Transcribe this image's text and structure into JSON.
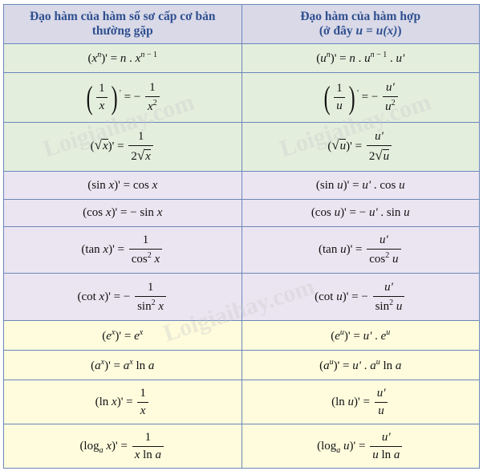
{
  "header": {
    "left": "Đạo hàm của hàm số sơ cấp cơ bản thường gặp",
    "right_line1": "Đạo hàm của hàm hợp",
    "right_line2_pre": "(ở đây ",
    "right_line2_math": "u = u(x)",
    "right_line2_post": ")"
  },
  "watermark": "Loigiaihay.com",
  "colors": {
    "header": "#d9d9e8",
    "green": "#e4eedd",
    "purple": "#ebe5f1",
    "yellow": "#fefcdd",
    "border": "#6b87b8",
    "header_text": "#2f4f8f"
  },
  "rows": [
    {
      "band": "green",
      "h": 36,
      "left": [
        {
          "r": "("
        },
        {
          "i": "x"
        },
        {
          "sup": [
            {
              "i": "n"
            }
          ]
        },
        {
          "r": ")' = "
        },
        {
          "i": "n"
        },
        {
          "r": " . "
        },
        {
          "i": "x"
        },
        {
          "sup": [
            {
              "i": "n"
            },
            {
              "r": " − 1"
            }
          ]
        }
      ],
      "right": [
        {
          "r": "("
        },
        {
          "i": "u"
        },
        {
          "sup": [
            {
              "i": "n"
            }
          ]
        },
        {
          "r": ")' = "
        },
        {
          "i": "n"
        },
        {
          "r": " . "
        },
        {
          "i": "u"
        },
        {
          "sup": [
            {
              "i": "n"
            },
            {
              "r": " − 1"
            }
          ]
        },
        {
          "r": " . "
        },
        {
          "i": "u'"
        }
      ]
    },
    {
      "band": "green",
      "h": 62,
      "left": [
        {
          "paren": [
            {
              "frac": [
                [
                  {
                    "r": "1"
                  }
                ],
                [
                  {
                    "i": "x"
                  }
                ]
              ]
            }
          ]
        },
        {
          "sup": [
            {
              "r": "'"
            }
          ]
        },
        {
          "r": " = − "
        },
        {
          "frac": [
            [
              {
                "r": "1"
              }
            ],
            [
              {
                "i": "x"
              },
              {
                "sup": [
                  {
                    "r": "2"
                  }
                ]
              }
            ]
          ]
        }
      ],
      "right": [
        {
          "paren": [
            {
              "frac": [
                [
                  {
                    "r": "1"
                  }
                ],
                [
                  {
                    "i": "u"
                  }
                ]
              ]
            }
          ]
        },
        {
          "sup": [
            {
              "r": "'"
            }
          ]
        },
        {
          "r": " = − "
        },
        {
          "frac": [
            [
              {
                "i": "u'"
              }
            ],
            [
              {
                "i": "u"
              },
              {
                "sup": [
                  {
                    "r": "2"
                  }
                ]
              }
            ]
          ]
        }
      ]
    },
    {
      "band": "green",
      "h": 61,
      "left": [
        {
          "r": "("
        },
        {
          "sqrt": [
            {
              "i": "x"
            }
          ]
        },
        {
          "r": ")' = "
        },
        {
          "frac": [
            [
              {
                "r": "1"
              }
            ],
            [
              {
                "r": "2"
              },
              {
                "sqrt": [
                  {
                    "i": "x"
                  }
                ]
              }
            ]
          ]
        }
      ],
      "right": [
        {
          "r": "("
        },
        {
          "sqrt": [
            {
              "i": "u"
            }
          ]
        },
        {
          "r": ")' = "
        },
        {
          "frac": [
            [
              {
                "i": "u'"
              }
            ],
            [
              {
                "r": "2"
              },
              {
                "sqrt": [
                  {
                    "i": "u"
                  }
                ]
              }
            ]
          ]
        }
      ]
    },
    {
      "band": "purple",
      "h": 35,
      "left": [
        {
          "r": "(sin "
        },
        {
          "i": "x"
        },
        {
          "r": ")' = cos "
        },
        {
          "i": "x"
        }
      ],
      "right": [
        {
          "r": "(sin "
        },
        {
          "i": "u"
        },
        {
          "r": ")' = "
        },
        {
          "i": "u'"
        },
        {
          "r": " . cos "
        },
        {
          "i": "u"
        }
      ]
    },
    {
      "band": "purple",
      "h": 34,
      "left": [
        {
          "r": "(cos "
        },
        {
          "i": "x"
        },
        {
          "r": ")' = − sin "
        },
        {
          "i": "x"
        }
      ],
      "right": [
        {
          "r": "(cos "
        },
        {
          "i": "u"
        },
        {
          "r": ")' = − "
        },
        {
          "i": "u'"
        },
        {
          "r": " . sin "
        },
        {
          "i": "u"
        }
      ]
    },
    {
      "band": "purple",
      "h": 58,
      "left": [
        {
          "r": "(tan "
        },
        {
          "i": "x"
        },
        {
          "r": ")' = "
        },
        {
          "frac": [
            [
              {
                "r": "1"
              }
            ],
            [
              {
                "r": "cos"
              },
              {
                "sup": [
                  {
                    "r": "2"
                  }
                ]
              },
              {
                "r": " "
              },
              {
                "i": "x"
              }
            ]
          ]
        }
      ],
      "right": [
        {
          "r": "(tan "
        },
        {
          "i": "u"
        },
        {
          "r": ")' = "
        },
        {
          "frac": [
            [
              {
                "i": "u'"
              }
            ],
            [
              {
                "r": "cos"
              },
              {
                "sup": [
                  {
                    "r": "2"
                  }
                ]
              },
              {
                "r": " "
              },
              {
                "i": "u"
              }
            ]
          ]
        }
      ]
    },
    {
      "band": "purple",
      "h": 59,
      "left": [
        {
          "r": "(cot "
        },
        {
          "i": "x"
        },
        {
          "r": ")' = − "
        },
        {
          "frac": [
            [
              {
                "r": "1"
              }
            ],
            [
              {
                "r": "sin"
              },
              {
                "sup": [
                  {
                    "r": "2"
                  }
                ]
              },
              {
                "r": " "
              },
              {
                "i": "x"
              }
            ]
          ]
        }
      ],
      "right": [
        {
          "r": "(cot "
        },
        {
          "i": "u"
        },
        {
          "r": ")' = − "
        },
        {
          "frac": [
            [
              {
                "i": "u'"
              }
            ],
            [
              {
                "r": "sin"
              },
              {
                "sup": [
                  {
                    "r": "2"
                  }
                ]
              },
              {
                "r": " "
              },
              {
                "i": "u"
              }
            ]
          ]
        }
      ]
    },
    {
      "band": "yellow",
      "h": 37,
      "left": [
        {
          "r": "("
        },
        {
          "i": "e"
        },
        {
          "sup": [
            {
              "i": "x"
            }
          ]
        },
        {
          "r": ")' = "
        },
        {
          "i": "e"
        },
        {
          "sup": [
            {
              "i": "x"
            }
          ]
        }
      ],
      "right": [
        {
          "r": "("
        },
        {
          "i": "e"
        },
        {
          "sup": [
            {
              "i": "u"
            }
          ]
        },
        {
          "r": ")' = "
        },
        {
          "i": "u'"
        },
        {
          "r": " . "
        },
        {
          "i": "e"
        },
        {
          "sup": [
            {
              "i": "u"
            }
          ]
        }
      ]
    },
    {
      "band": "yellow",
      "h": 37,
      "left": [
        {
          "r": "("
        },
        {
          "i": "a"
        },
        {
          "sup": [
            {
              "i": "x"
            }
          ]
        },
        {
          "r": ")' = "
        },
        {
          "i": "a"
        },
        {
          "sup": [
            {
              "i": "x"
            }
          ]
        },
        {
          "r": " ln "
        },
        {
          "i": "a"
        }
      ],
      "right": [
        {
          "r": "("
        },
        {
          "i": "a"
        },
        {
          "sup": [
            {
              "i": "u"
            }
          ]
        },
        {
          "r": ")' = "
        },
        {
          "i": "u'"
        },
        {
          "r": " . "
        },
        {
          "i": "a"
        },
        {
          "sup": [
            {
              "i": "u"
            }
          ]
        },
        {
          "r": " ln "
        },
        {
          "i": "a"
        }
      ]
    },
    {
      "band": "yellow",
      "h": 55,
      "left": [
        {
          "r": "(ln "
        },
        {
          "i": "x"
        },
        {
          "r": ")' = "
        },
        {
          "frac": [
            [
              {
                "r": "1"
              }
            ],
            [
              {
                "i": "x"
              }
            ]
          ]
        }
      ],
      "right": [
        {
          "r": "(ln "
        },
        {
          "i": "u"
        },
        {
          "r": ")' = "
        },
        {
          "frac": [
            [
              {
                "i": "u'"
              }
            ],
            [
              {
                "i": "u"
              }
            ]
          ]
        }
      ]
    },
    {
      "band": "yellow",
      "h": 55,
      "left": [
        {
          "r": "(log"
        },
        {
          "sub": [
            {
              "i": "a"
            }
          ]
        },
        {
          "r": " "
        },
        {
          "i": "x"
        },
        {
          "r": ")' = "
        },
        {
          "frac": [
            [
              {
                "r": "1"
              }
            ],
            [
              {
                "i": "x"
              },
              {
                "r": " ln "
              },
              {
                "i": "a"
              }
            ]
          ]
        }
      ],
      "right": [
        {
          "r": "(log"
        },
        {
          "sub": [
            {
              "i": "a"
            }
          ]
        },
        {
          "r": " "
        },
        {
          "i": "u"
        },
        {
          "r": ")' = "
        },
        {
          "frac": [
            [
              {
                "i": "u'"
              }
            ],
            [
              {
                "i": "u"
              },
              {
                "r": " ln "
              },
              {
                "i": "a"
              }
            ]
          ]
        }
      ]
    }
  ]
}
